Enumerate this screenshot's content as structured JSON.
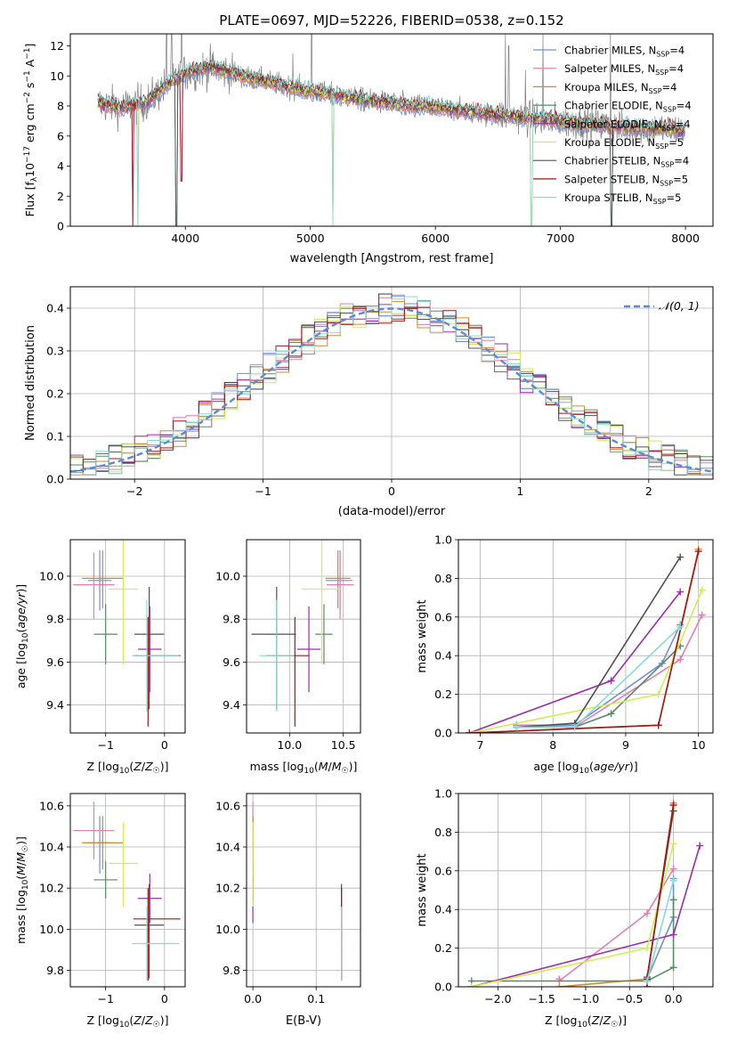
{
  "figure_title": "PLATE=0697, MJD=52226, FIBERID=0538, z=0.152",
  "colors": {
    "Chabrier MILES": "#6f8fd6",
    "Salpeter MILES": "#e07fae",
    "Kroupa MILES": "#d08a2e",
    "Chabrier ELODIE": "#5a8a66",
    "Salpeter ELODIE": "#9630a8",
    "Kroupa ELODIE": "#d4ec50",
    "Chabrier STELIB": "#505050",
    "Salpeter STELIB": "#a01818",
    "Kroupa STELIB": "#88dad4",
    "data": "#808080"
  },
  "chart_data": [
    {
      "id": "spectrum",
      "type": "line",
      "title": "PLATE=0697, MJD=52226, FIBERID=0538, z=0.152",
      "xlabel": "wavelength [Angstrom, rest frame]",
      "ylabel": "Flux [f_λ10^-17 erg cm^-2 s^-1 A^-1]",
      "xlim": [
        3080,
        8220
      ],
      "ylim": [
        0,
        12.8
      ],
      "xticks": [
        4000,
        5000,
        6000,
        7000,
        8000
      ],
      "yticks": [
        0,
        2,
        4,
        6,
        8,
        10,
        12
      ],
      "grid": false,
      "legend_placement": "right",
      "legend": [
        "Chabrier MILES, N_SSP=4",
        "Salpeter MILES, N_SSP=4",
        "Kroupa MILES, N_SSP=4",
        "Chabrier ELODIE, N_SSP=4",
        "Salpeter ELODIE, N_SSP=4",
        "Kroupa ELODIE, N_SSP=5",
        "Chabrier STELIB, N_SSP=4",
        "Salpeter STELIB, N_SSP=5",
        "Kroupa STELIB, N_SSP=5"
      ],
      "continuum": [
        [
          3300,
          8.2
        ],
        [
          3500,
          7.9
        ],
        [
          3700,
          8.3
        ],
        [
          3850,
          9.4
        ],
        [
          4000,
          10.2
        ],
        [
          4200,
          10.6
        ],
        [
          4500,
          9.9
        ],
        [
          5000,
          9.0
        ],
        [
          5500,
          8.3
        ],
        [
          6000,
          7.9
        ],
        [
          6500,
          7.4
        ],
        [
          7000,
          7.0
        ],
        [
          7500,
          6.6
        ],
        [
          8000,
          6.4
        ]
      ],
      "absorption_drops": [
        [
          3580,
          0
        ],
        [
          3620,
          0
        ],
        [
          3930,
          0
        ],
        [
          3970,
          3
        ],
        [
          5180,
          0
        ],
        [
          6770,
          0
        ],
        [
          7410,
          0
        ]
      ],
      "emission_spikes": [
        [
          3850,
          13
        ],
        [
          3890,
          13
        ],
        [
          3970,
          12.8
        ],
        [
          4860,
          11.5
        ],
        [
          5010,
          12.8
        ],
        [
          6560,
          12.8
        ],
        [
          6585,
          12
        ],
        [
          6720,
          10.4
        ],
        [
          6860,
          12.8
        ],
        [
          7400,
          12.8
        ]
      ]
    },
    {
      "id": "residuals",
      "type": "step",
      "xlabel": "(data-model)/error",
      "ylabel": "Normed distribution",
      "xlim": [
        -2.5,
        2.5
      ],
      "ylim": [
        0,
        0.45
      ],
      "xticks": [
        -2,
        -1,
        0,
        1,
        2
      ],
      "yticks": [
        0.0,
        0.1,
        0.2,
        0.3,
        0.4
      ],
      "grid": true,
      "legend": [
        "𝒩(0, 1)"
      ],
      "legend_placement": "upper right"
    },
    {
      "id": "age_vs_Z",
      "type": "errorbar",
      "xlabel": "Z [log10(Z/Z☉)]",
      "ylabel": "age  [log10(age/yr)]",
      "xlim": [
        -1.6,
        0.35
      ],
      "ylim": [
        9.27,
        10.17
      ],
      "xticks": [
        -1,
        0
      ],
      "yticks": [
        9.4,
        9.6,
        9.8,
        10.0
      ],
      "grid": true
    },
    {
      "id": "age_vs_mass",
      "type": "errorbar",
      "xlabel": "mass [log10(M/M☉)]",
      "ylabel": "",
      "xlim": [
        9.6,
        10.66
      ],
      "ylim": [
        9.27,
        10.17
      ],
      "xticks": [
        10.0,
        10.5
      ],
      "yticks": [
        9.4,
        9.6,
        9.8,
        10.0
      ],
      "grid": true
    },
    {
      "id": "mass_weight_vs_age",
      "type": "line",
      "xlabel": "age  [log10(age/yr)]",
      "ylabel": "mass weight",
      "xlim": [
        6.7,
        10.2
      ],
      "ylim": [
        0,
        1.0
      ],
      "xticks": [
        7,
        8,
        9,
        10
      ],
      "yticks": [
        0.0,
        0.2,
        0.4,
        0.6,
        0.8,
        1.0
      ],
      "grid": true
    },
    {
      "id": "mass_vs_Z",
      "type": "errorbar",
      "xlabel": "Z [log10(Z/Z☉)]",
      "ylabel": "mass [log10(M/M☉)]",
      "xlim": [
        -1.6,
        0.35
      ],
      "ylim": [
        9.72,
        10.66
      ],
      "xticks": [
        -1,
        0
      ],
      "yticks": [
        9.8,
        10.0,
        10.2,
        10.4,
        10.6
      ],
      "grid": true
    },
    {
      "id": "mass_vs_ebv",
      "type": "errorbar",
      "xlabel": "E(B-V)",
      "ylabel": "",
      "xlim": [
        -0.01,
        0.17
      ],
      "ylim": [
        9.72,
        10.66
      ],
      "xticks": [
        0.0,
        0.1
      ],
      "yticks": [
        9.8,
        10.0,
        10.2,
        10.4,
        10.6
      ],
      "grid": true
    },
    {
      "id": "mass_weight_vs_Z",
      "type": "line",
      "xlabel": "Z [log10(Z/Z☉)]",
      "ylabel": "mass weight",
      "xlim": [
        -2.45,
        0.45
      ],
      "ylim": [
        0,
        1.0
      ],
      "xticks": [
        -2.0,
        -1.5,
        -1.0,
        -0.5,
        0.0
      ],
      "yticks": [
        0.0,
        0.2,
        0.4,
        0.6,
        0.8,
        1.0
      ],
      "grid": true
    }
  ],
  "fits": [
    {
      "key": "Chabrier MILES",
      "age": 9.98,
      "age_err": [
        0.14,
        0.14
      ],
      "Z": -1.1,
      "Z_err": [
        0.2,
        0.2
      ],
      "mass": 10.42,
      "mass_err": [
        0.15,
        0.13
      ],
      "logmass_x": 10.47,
      "ebv": 0.0,
      "ebv_err": [
        0.0,
        0.0
      ],
      "ages": [
        7.5,
        8.3,
        9.5,
        9.75
      ],
      "weights": [
        0.04,
        0.04,
        0.36,
        0.56
      ],
      "Zs": [
        -0.3,
        -0.3,
        0.0,
        0.0
      ]
    },
    {
      "key": "Salpeter MILES",
      "age": 9.96,
      "age_err": [
        0.16,
        0.15
      ],
      "Z": -1.2,
      "Z_err": [
        0.35,
        0.35
      ],
      "mass": 10.48,
      "mass_err": [
        0.14,
        0.14
      ],
      "logmass_x": 10.47,
      "ebv": 0.0,
      "ebv_err": [
        0.001,
        0.001
      ],
      "ages": [
        7.5,
        8.3,
        9.75,
        10.05
      ],
      "weights": [
        0.04,
        0.03,
        0.38,
        0.61
      ],
      "Zs": [
        -1.3,
        -1.3,
        -0.3,
        0.0
      ]
    },
    {
      "key": "Kroupa MILES",
      "age": 9.99,
      "age_err": [
        0.14,
        0.13
      ],
      "Z": -1.05,
      "Z_err": [
        0.35,
        0.35
      ],
      "mass": 10.42,
      "mass_err": [
        0.13,
        0.13
      ],
      "logmass_x": 10.45,
      "ebv": 0.0,
      "ebv_err": [
        0.001,
        0.001
      ],
      "ages": [
        6.85,
        9.45,
        10.0
      ],
      "weights": [
        0.0,
        0.04,
        0.95
      ],
      "Zs": [
        -1.3,
        -0.3,
        0.0
      ]
    },
    {
      "key": "Chabrier ELODIE",
      "age": 9.73,
      "age_err": [
        0.14,
        0.14
      ],
      "Z": -1.0,
      "Z_err": [
        0.2,
        0.2
      ],
      "mass": 10.24,
      "mass_err": [
        0.09,
        0.09
      ],
      "logmass_x": 10.32,
      "ebv": 0.0,
      "ebv_err": [
        0.001,
        0.001
      ],
      "ages": [
        7.5,
        8.3,
        8.8,
        9.75
      ],
      "weights": [
        0.03,
        0.03,
        0.1,
        0.45
      ],
      "Zs": [
        -2.3,
        -0.3,
        0.0,
        0.0
      ]
    },
    {
      "key": "Salpeter ELODIE",
      "age": 9.66,
      "age_err": [
        0.2,
        0.2
      ],
      "Z": -0.25,
      "Z_err": [
        0.2,
        0.2
      ],
      "mass": 10.15,
      "mass_err": [
        0.12,
        0.12
      ],
      "logmass_x": 10.18,
      "ebv": 0.0,
      "ebv_err": [
        0.001,
        0.001
      ],
      "ages": [
        6.85,
        8.8,
        9.75
      ],
      "weights": [
        0.0,
        0.27,
        0.73
      ],
      "Zs": [
        -2.3,
        0.0,
        0.3
      ]
    },
    {
      "key": "Kroupa ELODIE",
      "age": 9.94,
      "age_err": [
        0.35,
        0.33
      ],
      "Z": -0.7,
      "Z_err": [
        0.25,
        0.25
      ],
      "mass": 10.32,
      "mass_err": [
        0.21,
        0.2
      ],
      "logmass_x": 10.3,
      "ebv": 0.0,
      "ebv_err": [
        0.001,
        0.001
      ],
      "ages": [
        6.85,
        9.45,
        10.05
      ],
      "weights": [
        0.0,
        0.2,
        0.74
      ],
      "Zs": [
        -2.3,
        -0.3,
        0.0
      ]
    },
    {
      "key": "Chabrier STELIB",
      "age": 9.73,
      "age_err": [
        0.35,
        0.22
      ],
      "Z": -0.26,
      "Z_err": [
        0.25,
        0.25
      ],
      "mass": 10.02,
      "mass_err": [
        0.26,
        0.2
      ],
      "logmass_x": 9.88,
      "ebv": 0.14,
      "ebv_err": [
        0.001,
        0.001
      ],
      "ages": [
        7.5,
        8.3,
        9.75
      ],
      "weights": [
        0.03,
        0.05,
        0.91
      ],
      "Zs": [
        -0.3,
        -0.3,
        0.0
      ]
    },
    {
      "key": "Salpeter STELIB",
      "age": 9.63,
      "age_err": [
        0.33,
        0.18
      ],
      "Z": -0.28,
      "Z_err": [
        0.25,
        0.55
      ],
      "mass": 10.05,
      "mass_err": [
        0.3,
        0.15
      ],
      "logmass_x": 10.05,
      "ebv": 0.14,
      "ebv_err": [
        0.001,
        0.001
      ],
      "ages": [
        6.85,
        9.45,
        10.0
      ],
      "weights": [
        0.0,
        0.04,
        0.94
      ],
      "Zs": [
        -0.3,
        -0.3,
        0.0
      ]
    },
    {
      "key": "Kroupa STELIB",
      "age": 9.63,
      "age_err": [
        0.26,
        0.26
      ],
      "Z": -0.3,
      "Z_err": [
        0.25,
        0.55
      ],
      "mass": 9.93,
      "mass_err": [
        0.18,
        0.18
      ],
      "logmass_x": 9.88,
      "ebv": 0.14,
      "ebv_err": [
        0.001,
        0.001
      ],
      "ages": [
        7.5,
        8.3,
        9.75
      ],
      "weights": [
        0.03,
        0.03,
        0.55
      ],
      "Zs": [
        -0.3,
        -0.3,
        0.0
      ]
    }
  ]
}
